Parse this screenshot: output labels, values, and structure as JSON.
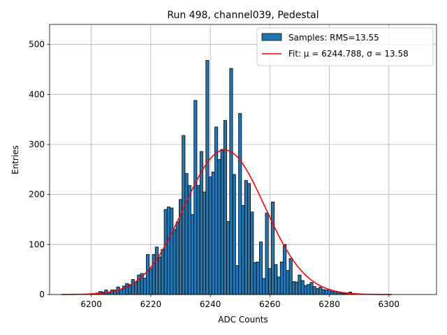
{
  "chart_data": {
    "type": "bar",
    "title": "Run 498, channel039, Pedestal",
    "xlabel": "ADC Counts",
    "ylabel": "Entries",
    "xlim": [
      6186,
      6316
    ],
    "ylim": [
      0,
      540
    ],
    "xticks": [
      6200,
      6220,
      6240,
      6260,
      6280,
      6300
    ],
    "yticks": [
      0,
      100,
      200,
      300,
      400,
      500
    ],
    "grid": true,
    "legend_position": "top-right",
    "bin_width": 1,
    "series": [
      {
        "name": "Samples: RMS=13.55",
        "kind": "histogram",
        "color": "#1f77b4",
        "edgecolor": "#000000",
        "bins": [
          6201,
          6202,
          6203,
          6204,
          6205,
          6206,
          6207,
          6208,
          6209,
          6210,
          6211,
          6212,
          6213,
          6214,
          6215,
          6216,
          6217,
          6218,
          6219,
          6220,
          6221,
          6222,
          6223,
          6224,
          6225,
          6226,
          6227,
          6228,
          6229,
          6230,
          6231,
          6232,
          6233,
          6234,
          6235,
          6236,
          6237,
          6238,
          6239,
          6240,
          6241,
          6242,
          6243,
          6244,
          6245,
          6246,
          6247,
          6248,
          6249,
          6250,
          6251,
          6252,
          6253,
          6254,
          6255,
          6256,
          6257,
          6258,
          6259,
          6260,
          6261,
          6262,
          6263,
          6264,
          6265,
          6266,
          6267,
          6268,
          6269,
          6270,
          6271,
          6272,
          6273,
          6274,
          6275,
          6276,
          6277,
          6278,
          6279,
          6280,
          6281,
          6282,
          6283,
          6284,
          6285,
          6286,
          6287,
          6288
        ],
        "values": [
          2,
          3,
          6,
          5,
          9,
          4,
          9,
          9,
          15,
          11,
          17,
          22,
          20,
          30,
          25,
          39,
          42,
          33,
          80,
          52,
          80,
          95,
          75,
          90,
          170,
          175,
          173,
          130,
          145,
          190,
          318,
          242,
          218,
          160,
          388,
          218,
          286,
          205,
          468,
          235,
          245,
          335,
          270,
          290,
          348,
          146,
          452,
          240,
          58,
          362,
          178,
          228,
          222,
          165,
          64,
          65,
          105,
          32,
          163,
          52,
          185,
          60,
          35,
          65,
          100,
          48,
          72,
          26,
          25,
          39,
          28,
          18,
          20,
          24,
          16,
          12,
          15,
          10,
          9,
          10,
          6,
          7,
          5,
          3,
          2,
          3,
          5,
          1
        ]
      },
      {
        "name": "Fit: μ = 6244.788, σ = 13.58",
        "kind": "gaussian_fit",
        "color": "#ff0000",
        "mu": 6244.788,
        "sigma": 13.58,
        "amplitude": 289,
        "x_range": [
          6190,
          6301
        ]
      }
    ]
  }
}
